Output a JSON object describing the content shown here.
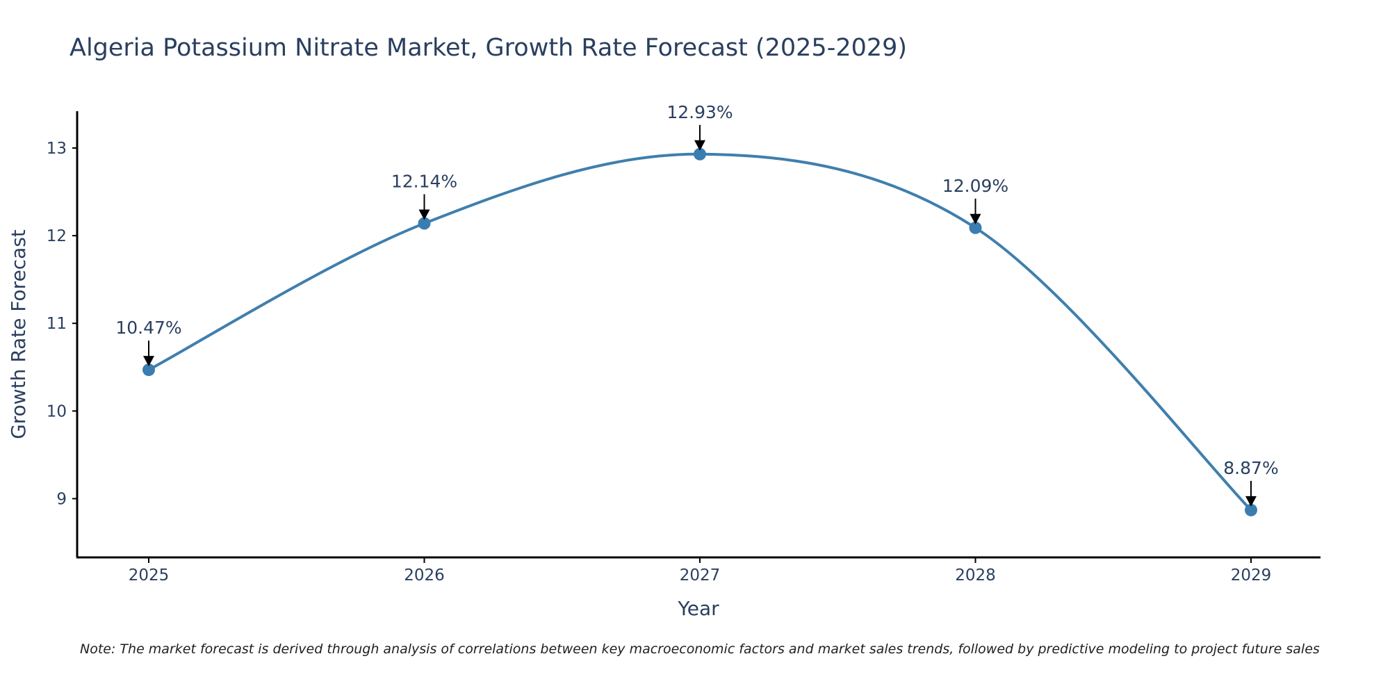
{
  "chart_data": {
    "type": "line",
    "title": "Algeria Potassium Nitrate Market, Growth Rate Forecast (2025-2029)",
    "xlabel": "Year",
    "ylabel": "Growth Rate Forecast",
    "categories": [
      "2025",
      "2026",
      "2027",
      "2028",
      "2029"
    ],
    "values": [
      10.47,
      12.14,
      12.93,
      12.09,
      8.87
    ],
    "data_labels": [
      "10.47%",
      "12.14%",
      "12.93%",
      "12.09%",
      "8.87%"
    ],
    "y_ticks": [
      9,
      10,
      11,
      12,
      13
    ],
    "ylim": [
      8.33,
      13.42
    ],
    "grid": false,
    "line_shape": "spline",
    "colors": {
      "line": "#3f7fad",
      "marker": "#3a7db0",
      "arrow": "#000000",
      "axis": "#000000"
    },
    "note": "Note: The market forecast is derived through analysis of correlations between key macroeconomic factors and market sales trends, followed by predictive modeling to project future sales"
  }
}
